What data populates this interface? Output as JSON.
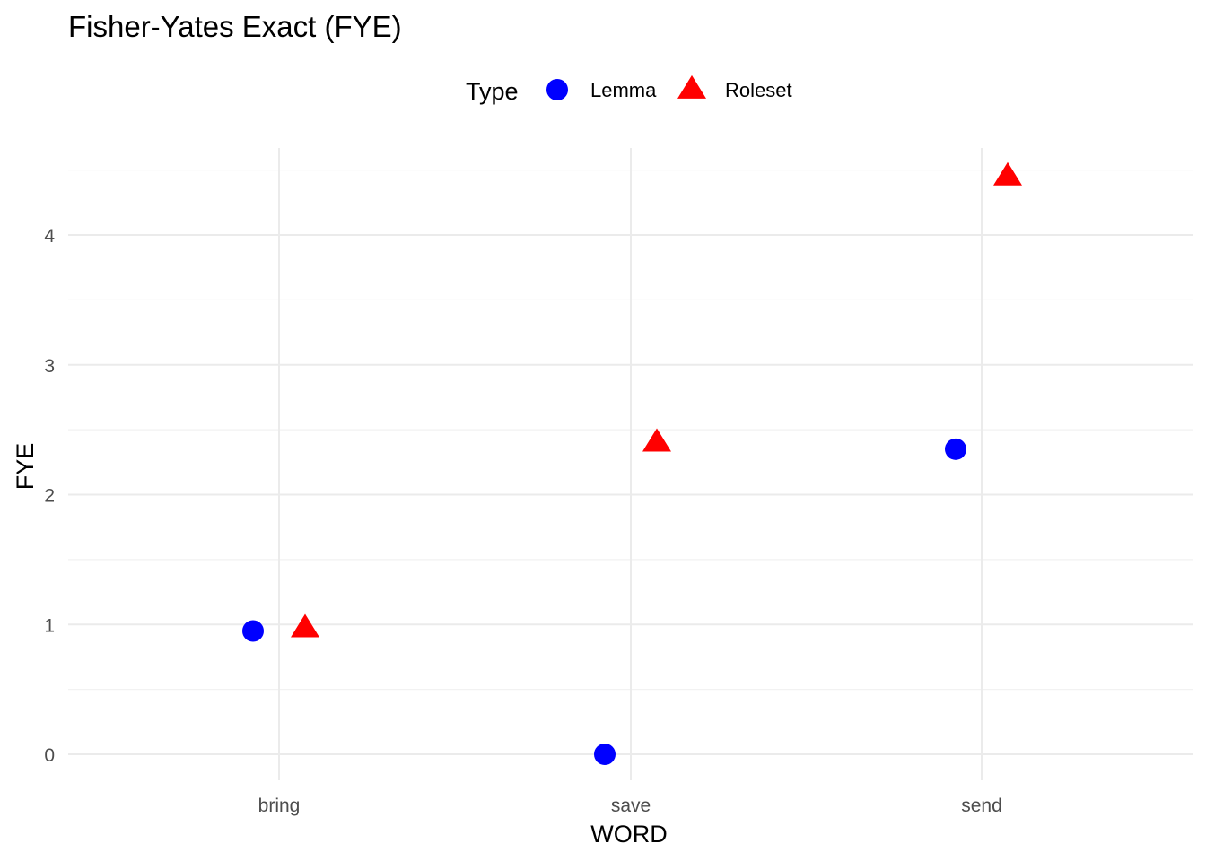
{
  "chart_data": {
    "type": "scatter",
    "title": "Fisher-Yates Exact (FYE)",
    "xlabel": "WORD",
    "ylabel": "FYE",
    "categories": [
      "bring",
      "save",
      "send"
    ],
    "ylim": [
      -0.15,
      4.6
    ],
    "yticks": [
      0,
      1,
      2,
      3,
      4
    ],
    "grid": true,
    "legend": {
      "title": "Type",
      "position": "top",
      "entries": [
        {
          "label": "Lemma",
          "shape": "circle",
          "color": "#0000ff"
        },
        {
          "label": "Roleset",
          "shape": "triangle",
          "color": "#ff0000"
        }
      ]
    },
    "series": [
      {
        "name": "Lemma",
        "shape": "circle",
        "color": "#0000ff",
        "points": [
          {
            "x": "bring",
            "y": 0.95
          },
          {
            "x": "save",
            "y": 0.0
          },
          {
            "x": "send",
            "y": 2.35
          }
        ]
      },
      {
        "name": "Roleset",
        "shape": "triangle",
        "color": "#ff0000",
        "points": [
          {
            "x": "bring",
            "y": 0.97
          },
          {
            "x": "save",
            "y": 2.4
          },
          {
            "x": "send",
            "y": 4.45
          }
        ]
      }
    ]
  }
}
